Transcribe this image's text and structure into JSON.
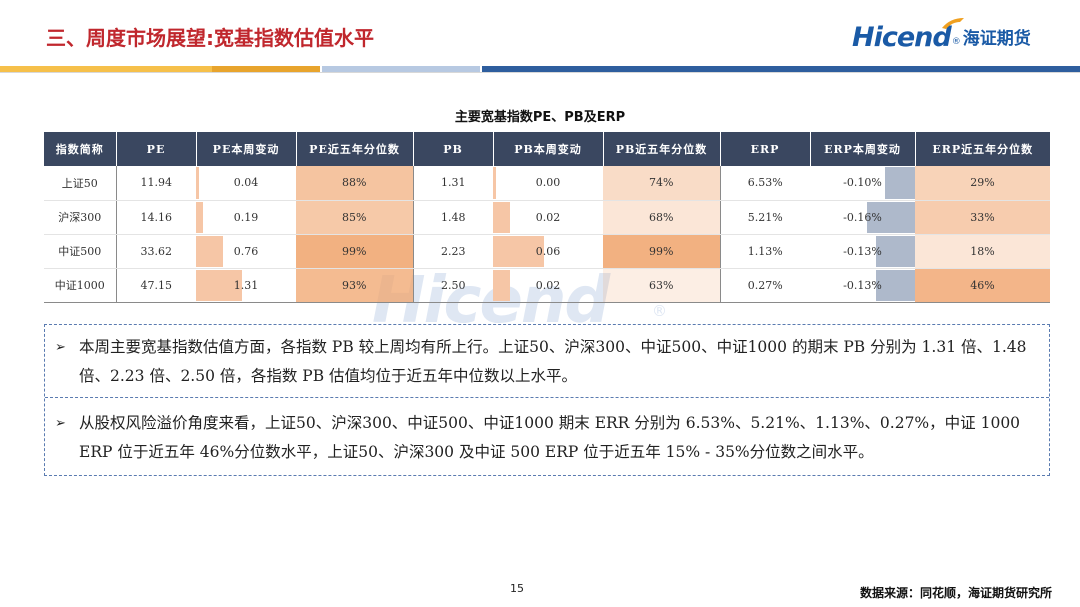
{
  "header": {
    "title": "三、周度市场展望:宽基指数估值水平",
    "logo_en": "Hicend",
    "logo_reg": "®",
    "logo_cn": "海证期货"
  },
  "table": {
    "title": "主要宽基指数PE、PB及ERP",
    "columns": [
      "指数简称",
      "PE",
      "PE本周变动",
      "PE近五年分位数",
      "PB",
      "PB本周变动",
      "PB近五年分位数",
      "ERP",
      "ERP本周变动",
      "ERP近五年分位数"
    ],
    "rows": [
      {
        "name": "上证50",
        "pe": "11.94",
        "pe_chg": "0.04",
        "pe_pct": "88%",
        "pb": "1.31",
        "pb_chg": "0.00",
        "pb_pct": "74%",
        "erp": "6.53%",
        "erp_chg": "-0.10%",
        "erp_pct": "29%"
      },
      {
        "name": "沪深300",
        "pe": "14.16",
        "pe_chg": "0.19",
        "pe_pct": "85%",
        "pb": "1.48",
        "pb_chg": "0.02",
        "pb_pct": "68%",
        "erp": "5.21%",
        "erp_chg": "-0.16%",
        "erp_pct": "33%"
      },
      {
        "name": "中证500",
        "pe": "33.62",
        "pe_chg": "0.76",
        "pe_pct": "99%",
        "pb": "2.23",
        "pb_chg": "0.06",
        "pb_pct": "99%",
        "erp": "1.13%",
        "erp_chg": "-0.13%",
        "erp_pct": "18%"
      },
      {
        "name": "中证1000",
        "pe": "47.15",
        "pe_chg": "1.31",
        "pe_pct": "93%",
        "pb": "2.50",
        "pb_chg": "0.02",
        "pb_pct": "63%",
        "erp": "0.27%",
        "erp_chg": "-0.13%",
        "erp_pct": "46%"
      }
    ],
    "colors": {
      "header_bg": "#3a4760",
      "pos_bar": "#f6c6a6",
      "neg_bar": "#aeb9cb",
      "heat_high": "#f0a36b"
    }
  },
  "watermark": {
    "text": "Hicend",
    "reg": "®"
  },
  "notes": {
    "bullet_1": "本周主要宽基指数估值方面，各指数 PB 较上周均有所上行。上证50、沪深300、中证500、中证1000 的期末 PB 分别为 1.31 倍、1.48 倍、2.23 倍、2.50 倍，各指数 PB 估值均位于近五年中位数以上水平。",
    "bullet_2": "从股权风险溢价角度来看，上证50、沪深300、中证500、中证1000 期末 ERR 分别为 6.53%、5.21%、1.13%、0.27%，中证 1000 ERP 位于近五年 46%分位数水平，上证50、沪深300 及中证 500 ERP 位于近五年 15% - 35%分位数之间水平。",
    "arrow": "➢"
  },
  "footer": {
    "page_number": "15",
    "source": "数据来源：同花顺，海证期货研究所"
  }
}
